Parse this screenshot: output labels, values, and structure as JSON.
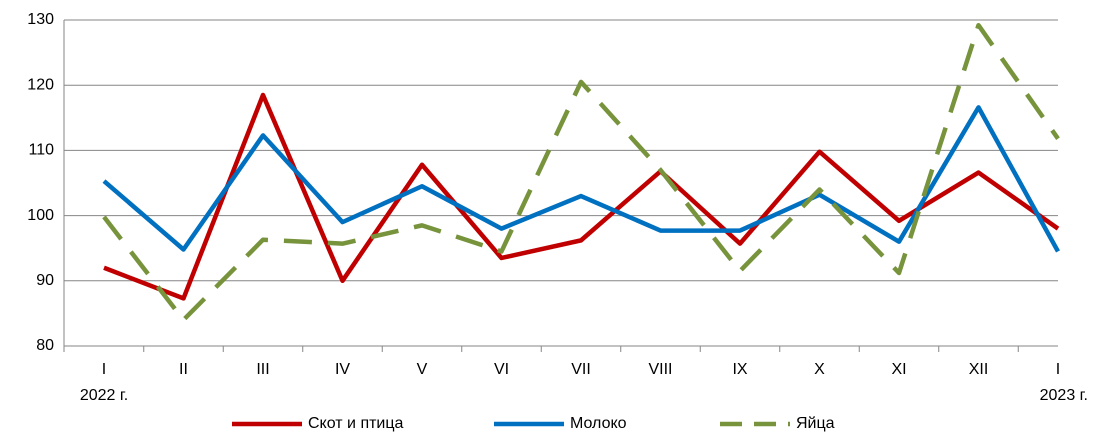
{
  "chart_data": {
    "type": "line",
    "categories": [
      "I",
      "II",
      "III",
      "IV",
      "V",
      "VI",
      "VII",
      "VIII",
      "IX",
      "X",
      "XI",
      "XII",
      "I"
    ],
    "annotations": [
      "2022 г.",
      "2023 г."
    ],
    "series": [
      {
        "name": "Скот и птица",
        "color": "#c00000",
        "dash": false,
        "values": [
          92,
          87.3,
          118.5,
          90,
          107.8,
          93.5,
          96.2,
          106.8,
          95.7,
          109.8,
          99.2,
          106.6,
          98
        ]
      },
      {
        "name": "Молоко",
        "color": "#0070c0",
        "dash": false,
        "values": [
          105.3,
          94.8,
          112.3,
          99,
          104.5,
          98,
          103,
          97.7,
          97.7,
          103.2,
          96,
          116.6,
          94.5
        ]
      },
      {
        "name": "Яйца",
        "color": "#77933c",
        "dash": true,
        "values": [
          99.8,
          84,
          96.3,
          95.7,
          98.5,
          94.5,
          120.5,
          107,
          91.5,
          104,
          91.2,
          129.2,
          111.8
        ]
      }
    ],
    "ylim": [
      80,
      130
    ],
    "yticks": [
      80,
      90,
      100,
      110,
      120,
      130
    ],
    "grid": true,
    "legend": "bottom"
  }
}
